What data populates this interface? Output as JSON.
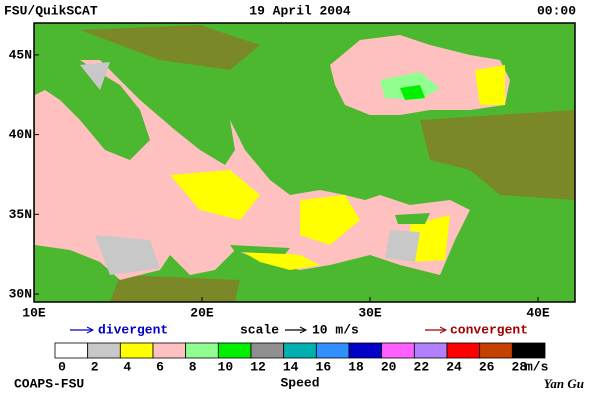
{
  "header": {
    "left": "FSU/QuikSCAT",
    "center": "19 April 2004",
    "right": "00:00"
  },
  "map": {
    "lon_range": [
      10,
      42.2
    ],
    "lat_range": [
      29.5,
      47
    ],
    "lon_ticks": [
      {
        "value": 10,
        "label": "10E"
      },
      {
        "value": 20,
        "label": "20E"
      },
      {
        "value": 30,
        "label": "30E"
      },
      {
        "value": 40,
        "label": "40E"
      }
    ],
    "lat_ticks": [
      {
        "value": 30,
        "label": "30N"
      },
      {
        "value": 35,
        "label": "35N"
      },
      {
        "value": 40,
        "label": "40N"
      },
      {
        "value": 45,
        "label": "45N"
      }
    ]
  },
  "legend": {
    "divergent": "divergent",
    "scale": "scale",
    "scale_value": "10 m/s",
    "convergent": "convergent"
  },
  "colorbar": {
    "title": "Speed",
    "unit": "m/s",
    "values": [
      0,
      2,
      4,
      6,
      8,
      10,
      12,
      14,
      16,
      18,
      20,
      22,
      24,
      26,
      28
    ],
    "colors": [
      "#ffffff",
      "#c8c8c8",
      "#ffff00",
      "#ffc0c0",
      "#90ff90",
      "#00f000",
      "#909090",
      "#00b0b0",
      "#3090ff",
      "#0000c8",
      "#ff60ff",
      "#b080ff",
      "#ff0000",
      "#c84000",
      "#000000"
    ]
  },
  "footer": {
    "left": "COAPS-FSU",
    "right": "Yan Gu"
  }
}
